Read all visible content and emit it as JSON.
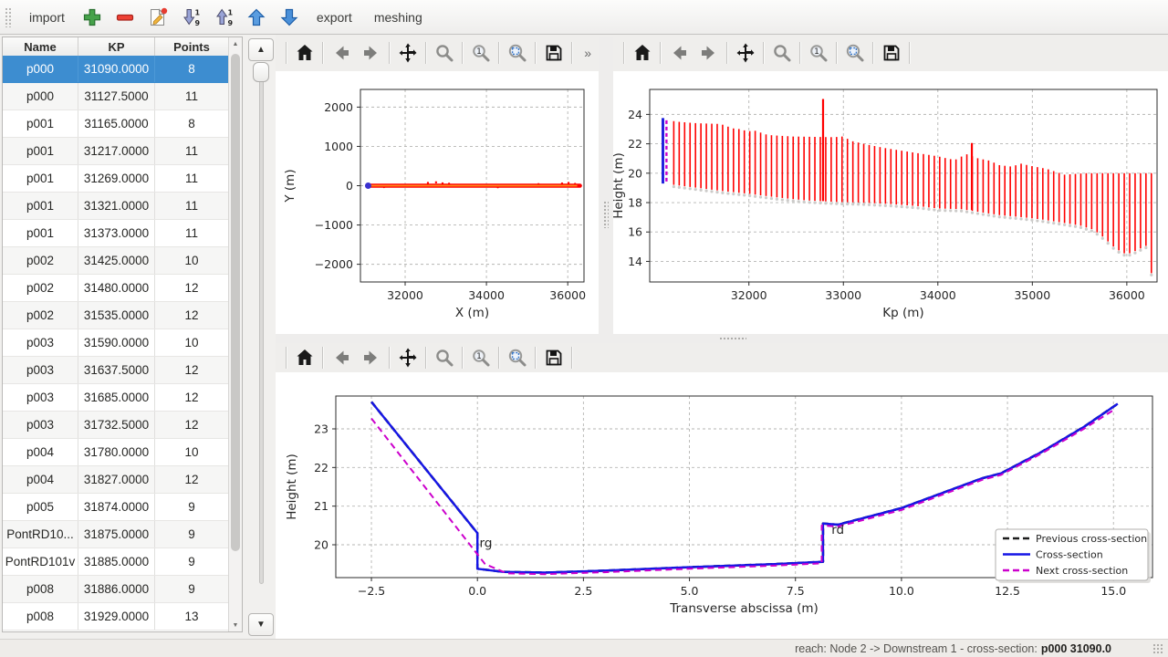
{
  "topbar": {
    "import_label": "import",
    "export_label": "export",
    "meshing_label": "meshing"
  },
  "ui_icons": {
    "up_triangle": "▲",
    "down_triangle": "▼"
  },
  "mpl_toolbar": {
    "overflow_label": "»",
    "buttons": [
      {
        "name": "home"
      },
      {
        "name": "back"
      },
      {
        "name": "forward"
      },
      {
        "name": "pan"
      },
      {
        "name": "zoom"
      },
      {
        "name": "zoom-one"
      },
      {
        "name": "zoom-select"
      },
      {
        "name": "save"
      }
    ]
  },
  "table": {
    "headers": [
      "Name",
      "KP",
      "Points"
    ],
    "selected_index": 0,
    "rows": [
      [
        "p000",
        "31090.0000",
        "8"
      ],
      [
        "p000",
        "31127.5000",
        "11"
      ],
      [
        "p001",
        "31165.0000",
        "8"
      ],
      [
        "p001",
        "31217.0000",
        "11"
      ],
      [
        "p001",
        "31269.0000",
        "11"
      ],
      [
        "p001",
        "31321.0000",
        "11"
      ],
      [
        "p001",
        "31373.0000",
        "11"
      ],
      [
        "p002",
        "31425.0000",
        "10"
      ],
      [
        "p002",
        "31480.0000",
        "12"
      ],
      [
        "p002",
        "31535.0000",
        "12"
      ],
      [
        "p003",
        "31590.0000",
        "10"
      ],
      [
        "p003",
        "31637.5000",
        "12"
      ],
      [
        "p003",
        "31685.0000",
        "12"
      ],
      [
        "p003",
        "31732.5000",
        "12"
      ],
      [
        "p004",
        "31780.0000",
        "10"
      ],
      [
        "p004",
        "31827.0000",
        "12"
      ],
      [
        "p005",
        "31874.0000",
        "9"
      ],
      [
        "PontRD10...",
        "31875.0000",
        "9"
      ],
      [
        "PontRD101v",
        "31885.0000",
        "9"
      ],
      [
        "p008",
        "31886.0000",
        "9"
      ],
      [
        "p008",
        "31929.0000",
        "13"
      ]
    ]
  },
  "status_bar": {
    "prefix": "reach: Node 2 -> Downstream 1 - cross-section: ",
    "highlight": "p000 31090.0"
  },
  "chart_data": [
    {
      "id": "plan",
      "type": "scatter",
      "xlabel": "X (m)",
      "ylabel": "Y (m)",
      "xlim": [
        30900,
        36400
      ],
      "ylim": [
        -2450,
        2450
      ],
      "xticks": [
        32000,
        34000,
        36000
      ],
      "xtick_labels": [
        "32000",
        "34000",
        "36000"
      ],
      "yticks": [
        2000,
        1000,
        0,
        -1000,
        -2000
      ],
      "ytick_labels": [
        "2000",
        "1000",
        "0",
        "−1000",
        "−2000"
      ],
      "grid": true,
      "river_line": {
        "y": 0,
        "x_start": 31090,
        "x_end": 36300,
        "outer_color": "#ff0000",
        "inner_color": "#ff8c1a"
      },
      "start_point": {
        "x": 31090,
        "y": 0,
        "color": "#3a30cf"
      },
      "scatter_noise": [
        [
          32560,
          70
        ],
        [
          32760,
          85
        ],
        [
          32920,
          60
        ],
        [
          33080,
          50
        ],
        [
          34280,
          -40
        ],
        [
          35280,
          40
        ],
        [
          35860,
          55
        ],
        [
          36020,
          70
        ],
        [
          36180,
          45
        ],
        [
          31480,
          -35
        ]
      ]
    },
    {
      "id": "profile",
      "type": "range-bars",
      "xlabel": "Kp (m)",
      "ylabel": "Height (m)",
      "xlim": [
        30950,
        36320
      ],
      "ylim": [
        12.6,
        25.7
      ],
      "xticks": [
        32000,
        33000,
        34000,
        35000,
        36000
      ],
      "xtick_labels": [
        "32000",
        "33000",
        "34000",
        "35000",
        "36000"
      ],
      "yticks": [
        14,
        16,
        18,
        20,
        22,
        24
      ],
      "ytick_labels": [
        "14",
        "16",
        "18",
        "20",
        "22",
        "24"
      ],
      "grid": true,
      "bar_color": "#ff0000",
      "bars": {
        "kp_start": 31090,
        "kp_end": 36260,
        "count": 91
      },
      "top_env": [
        [
          31090,
          23.65
        ],
        [
          31250,
          23.5
        ],
        [
          31450,
          23.4
        ],
        [
          31700,
          23.35
        ],
        [
          31830,
          23.05
        ],
        [
          31900,
          23.0
        ],
        [
          31990,
          22.85
        ],
        [
          32060,
          22.9
        ],
        [
          32200,
          22.6
        ],
        [
          32450,
          22.5
        ],
        [
          32900,
          22.45
        ],
        [
          33000,
          22.5
        ],
        [
          33080,
          22.2
        ],
        [
          33250,
          21.95
        ],
        [
          33450,
          21.7
        ],
        [
          33650,
          21.5
        ],
        [
          33850,
          21.3
        ],
        [
          34000,
          21.15
        ],
        [
          34100,
          21.0
        ],
        [
          34180,
          20.9
        ],
        [
          34300,
          21.3
        ],
        [
          34430,
          21.0
        ],
        [
          34550,
          20.85
        ],
        [
          34650,
          20.55
        ],
        [
          34780,
          20.45
        ],
        [
          34880,
          20.65
        ],
        [
          34980,
          20.5
        ],
        [
          35150,
          20.3
        ],
        [
          35270,
          20.05
        ],
        [
          35340,
          19.9
        ],
        [
          35450,
          19.95
        ],
        [
          35560,
          20.0
        ],
        [
          36260,
          20.0
        ]
      ],
      "bot_env": [
        [
          31090,
          19.3
        ],
        [
          31400,
          19.05
        ],
        [
          31700,
          18.8
        ],
        [
          32000,
          18.6
        ],
        [
          32300,
          18.35
        ],
        [
          32600,
          18.15
        ],
        [
          32900,
          18.05
        ],
        [
          33200,
          18.0
        ],
        [
          33500,
          17.9
        ],
        [
          33800,
          17.75
        ],
        [
          34000,
          17.6
        ],
        [
          34250,
          17.55
        ],
        [
          34450,
          17.35
        ],
        [
          34650,
          17.15
        ],
        [
          34900,
          17.0
        ],
        [
          35100,
          16.85
        ],
        [
          35300,
          16.65
        ],
        [
          35500,
          16.45
        ],
        [
          35650,
          16.15
        ],
        [
          35760,
          15.6
        ],
        [
          35860,
          15.0
        ],
        [
          35960,
          14.55
        ],
        [
          36040,
          14.55
        ],
        [
          36120,
          14.8
        ],
        [
          36200,
          15.05
        ],
        [
          36240,
          15.1
        ],
        [
          36260,
          13.2
        ]
      ],
      "spikes": [
        [
          32785,
          18.1,
          25.05
        ],
        [
          34360,
          17.5,
          22.05
        ]
      ],
      "selected_section": {
        "kp": 31090,
        "bottom": 19.3,
        "top": 23.75,
        "color": "#2222dd"
      },
      "next_section": {
        "kp": 31127.5,
        "bottom": 19.35,
        "top": 23.6,
        "color": "#cc00cc"
      }
    },
    {
      "id": "cross_section",
      "type": "line",
      "xlabel": "Transverse abscissa (m)",
      "ylabel": "Height (m)",
      "xlim": [
        -3.34,
        15.92
      ],
      "ylim": [
        19.15,
        23.85
      ],
      "xticks": [
        -2.5,
        0,
        2.5,
        5,
        7.5,
        10,
        12.5,
        15
      ],
      "xtick_labels": [
        "−2.5",
        "0.0",
        "2.5",
        "5.0",
        "7.5",
        "10.0",
        "12.5",
        "15.0"
      ],
      "yticks": [
        20,
        21,
        22,
        23
      ],
      "ytick_labels": [
        "20",
        "21",
        "22",
        "23"
      ],
      "grid": true,
      "series": [
        {
          "name": "Previous cross-section",
          "color": "#1c1c1c",
          "dash": "7 4.5",
          "width": 2.6,
          "points": [
            [
              -2.5,
              23.7
            ],
            [
              0.0,
              20.3
            ],
            [
              0.0,
              19.38
            ],
            [
              0.6,
              19.3
            ],
            [
              1.6,
              19.28
            ],
            [
              3.0,
              19.33
            ],
            [
              5.0,
              19.42
            ],
            [
              7.0,
              19.5
            ],
            [
              8.15,
              19.56
            ],
            [
              8.15,
              20.55
            ],
            [
              8.5,
              20.52
            ],
            [
              10.0,
              20.95
            ],
            [
              11.9,
              21.72
            ],
            [
              12.35,
              21.85
            ],
            [
              13.3,
              22.4
            ],
            [
              14.3,
              23.05
            ],
            [
              15.1,
              23.65
            ]
          ]
        },
        {
          "name": "Cross-section",
          "color": "#1515e6",
          "dash": null,
          "width": 2.4,
          "points": [
            [
              -2.5,
              23.7
            ],
            [
              0.0,
              20.3
            ],
            [
              0.0,
              19.38
            ],
            [
              0.6,
              19.3
            ],
            [
              1.6,
              19.28
            ],
            [
              3.0,
              19.33
            ],
            [
              5.0,
              19.42
            ],
            [
              7.0,
              19.5
            ],
            [
              8.15,
              19.56
            ],
            [
              8.15,
              20.55
            ],
            [
              8.5,
              20.52
            ],
            [
              10.0,
              20.95
            ],
            [
              11.9,
              21.72
            ],
            [
              12.35,
              21.85
            ],
            [
              13.3,
              22.4
            ],
            [
              14.3,
              23.05
            ],
            [
              15.1,
              23.65
            ]
          ]
        },
        {
          "name": "Next cross-section",
          "color": "#cc00cc",
          "dash": "7 4.5",
          "width": 2.0,
          "points": [
            [
              -2.5,
              23.27
            ],
            [
              0.18,
              19.5
            ],
            [
              0.7,
              19.26
            ],
            [
              1.6,
              19.24
            ],
            [
              3.0,
              19.29
            ],
            [
              5.0,
              19.38
            ],
            [
              7.0,
              19.46
            ],
            [
              8.12,
              19.52
            ],
            [
              8.12,
              20.5
            ],
            [
              8.5,
              20.47
            ],
            [
              10.0,
              20.9
            ],
            [
              11.9,
              21.68
            ],
            [
              12.35,
              21.81
            ],
            [
              13.3,
              22.36
            ],
            [
              14.3,
              23.0
            ],
            [
              15.05,
              23.52
            ]
          ]
        }
      ],
      "annotations": [
        {
          "text": "rg",
          "x": 0.05,
          "y": 20.08,
          "color": "#4596c8"
        },
        {
          "text": "rd",
          "x": 8.35,
          "y": 20.42,
          "color": "#141414"
        }
      ],
      "legend": {
        "position": "lower-right",
        "entries": [
          "Previous cross-section",
          "Cross-section",
          "Next cross-section"
        ]
      }
    }
  ]
}
